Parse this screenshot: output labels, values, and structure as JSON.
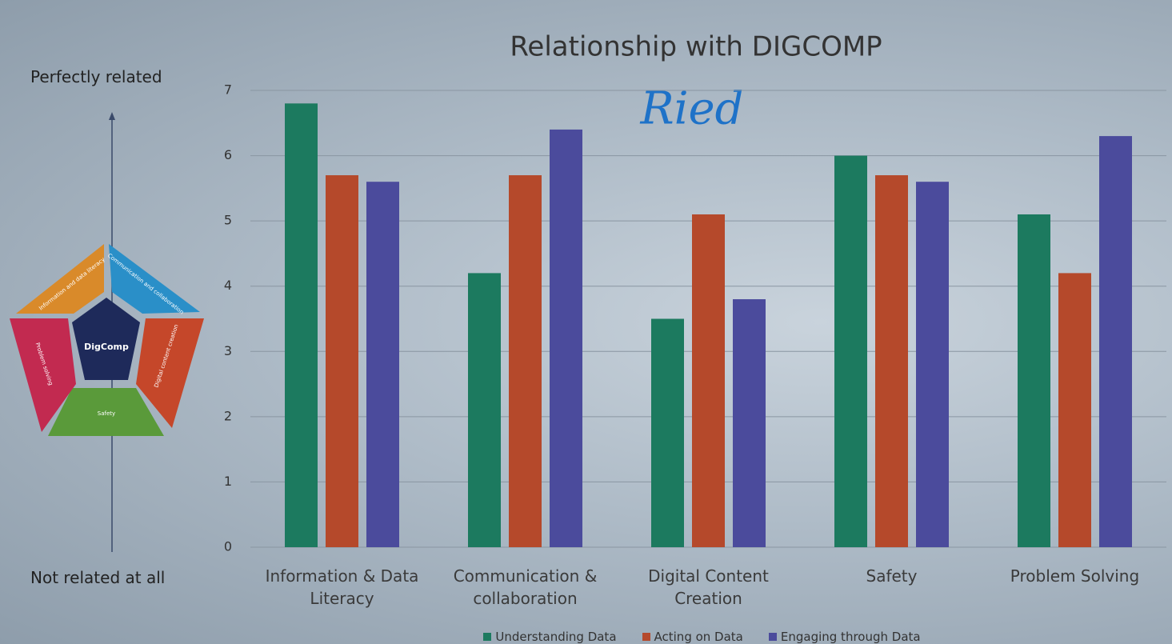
{
  "chart_data": {
    "type": "bar",
    "title": "Relationship with DIGCOMP",
    "subtitle": "Ried",
    "categories": [
      "Information & Data Literacy",
      "Communication & collaboration",
      "Digital Content Creation",
      "Safety",
      "Problem Solving"
    ],
    "series": [
      {
        "name": "Understanding Data",
        "color": "#1c7a5f",
        "values": [
          6.8,
          4.2,
          3.5,
          6.0,
          5.1
        ]
      },
      {
        "name": "Acting on Data",
        "color": "#b5492b",
        "values": [
          5.7,
          5.7,
          5.1,
          5.7,
          4.2
        ]
      },
      {
        "name": "Engaging through Data",
        "color": "#4b4b9c",
        "values": [
          5.6,
          6.4,
          3.8,
          5.6,
          6.3
        ]
      }
    ],
    "ylim": [
      0,
      7
    ],
    "yticks": [
      0,
      1,
      2,
      3,
      4,
      5,
      6,
      7
    ],
    "grid": true,
    "annotations": [
      "Perfectly related",
      "Not related at all"
    ]
  },
  "digcomp_diagram": {
    "center": "DigComp",
    "segments": [
      "Information and data literacy",
      "Communication and collaboration",
      "Digital content creation",
      "Safety",
      "Problem solving"
    ]
  }
}
